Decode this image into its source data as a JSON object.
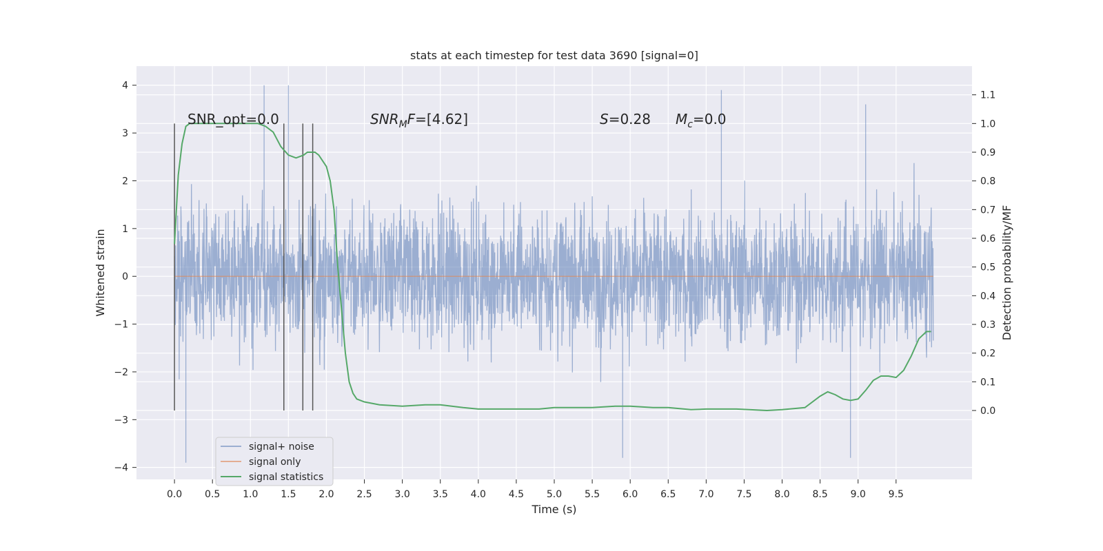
{
  "chart_data": {
    "type": "line",
    "title": "stats at each timestep for test data 3690 [signal=0]",
    "xlabel": "Time (s)",
    "ylabel": "Whitened strain",
    "ylabel_right": "Detection probability/MF",
    "xlim": [
      -0.5,
      10.5
    ],
    "ylim": [
      -4.25,
      4.4
    ],
    "ylim_right": [
      -0.24,
      1.2
    ],
    "x_ticks": [
      "0.0",
      "0.5",
      "1.0",
      "1.5",
      "2.0",
      "2.5",
      "3.0",
      "3.5",
      "4.0",
      "4.5",
      "5.0",
      "5.5",
      "6.0",
      "6.5",
      "7.0",
      "7.5",
      "8.0",
      "8.5",
      "9.0",
      "9.5"
    ],
    "y_ticks": [
      "−4",
      "−3",
      "−2",
      "−1",
      "0",
      "1",
      "2",
      "3",
      "4"
    ],
    "y_right_ticks": [
      "0.0",
      "0.1",
      "0.2",
      "0.3",
      "0.4",
      "0.5",
      "0.6",
      "0.7",
      "0.8",
      "0.9",
      "1.0",
      "1.1"
    ],
    "grid": true,
    "legend_position": "bottom-left",
    "colors": {
      "background": "#eaeaf2",
      "grid": "#ffffff",
      "noise": "#4c72b0",
      "signal_only": "#dd8452",
      "statistics": "#55a868",
      "markers": "#555555"
    },
    "annotations": {
      "snr_opt": "SNR_opt=0.0",
      "snr_mf_prefix": "SNR",
      "snr_mf_sub": "M",
      "snr_mf_suffix": "F=[4.62]",
      "s_label": "S",
      "s_value": "=0.28",
      "mc_label": "M",
      "mc_sub": "c",
      "mc_value": "=0.0"
    },
    "series": [
      {
        "name": "signal+ noise",
        "axis": "left",
        "envelope": {
          "x_range": [
            0.0,
            9.99
          ],
          "max_abs_approx": 4.0,
          "notable_peaks": [
            [
              1.18,
              4.0
            ],
            [
              1.5,
              4.0
            ],
            [
              7.2,
              3.9
            ],
            [
              9.1,
              3.6
            ],
            [
              5.9,
              -3.8
            ],
            [
              8.9,
              -3.8
            ],
            [
              0.15,
              -3.9
            ]
          ]
        }
      },
      {
        "name": "signal only",
        "axis": "left",
        "x": [
          0.0,
          9.99
        ],
        "values": [
          0.0,
          0.0
        ]
      },
      {
        "name": "signal statistics",
        "axis": "right",
        "x": [
          0.0,
          0.05,
          0.1,
          0.15,
          0.2,
          0.3,
          0.5,
          0.7,
          0.9,
          1.0,
          1.1,
          1.2,
          1.3,
          1.4,
          1.5,
          1.6,
          1.7,
          1.75,
          1.8,
          1.85,
          1.9,
          2.0,
          2.05,
          2.1,
          2.15,
          2.2,
          2.25,
          2.3,
          2.35,
          2.4,
          2.5,
          2.7,
          3.0,
          3.3,
          3.5,
          3.8,
          4.0,
          4.5,
          4.8,
          5.0,
          5.2,
          5.5,
          5.8,
          6.0,
          6.3,
          6.5,
          6.8,
          7.0,
          7.4,
          7.8,
          8.0,
          8.3,
          8.5,
          8.6,
          8.7,
          8.8,
          8.9,
          9.0,
          9.1,
          9.2,
          9.3,
          9.4,
          9.5,
          9.6,
          9.7,
          9.8,
          9.9,
          9.96
        ],
        "values": [
          0.58,
          0.82,
          0.93,
          0.99,
          1.0,
          1.0,
          1.0,
          1.0,
          1.0,
          1.0,
          1.0,
          0.99,
          0.97,
          0.92,
          0.89,
          0.88,
          0.89,
          0.9,
          0.9,
          0.9,
          0.89,
          0.85,
          0.8,
          0.7,
          0.5,
          0.35,
          0.2,
          0.1,
          0.06,
          0.04,
          0.03,
          0.02,
          0.015,
          0.02,
          0.02,
          0.01,
          0.005,
          0.005,
          0.005,
          0.01,
          0.01,
          0.01,
          0.015,
          0.015,
          0.01,
          0.01,
          0.003,
          0.005,
          0.005,
          0.0,
          0.003,
          0.01,
          0.05,
          0.065,
          0.055,
          0.04,
          0.035,
          0.04,
          0.07,
          0.105,
          0.12,
          0.12,
          0.115,
          0.14,
          0.19,
          0.25,
          0.275,
          0.275
        ]
      },
      {
        "name": "",
        "axis": "right",
        "type": "vlines",
        "x": [
          0.0,
          1.44,
          1.69,
          1.82
        ],
        "y_from": 0.0,
        "y_to": 1.0
      }
    ]
  }
}
